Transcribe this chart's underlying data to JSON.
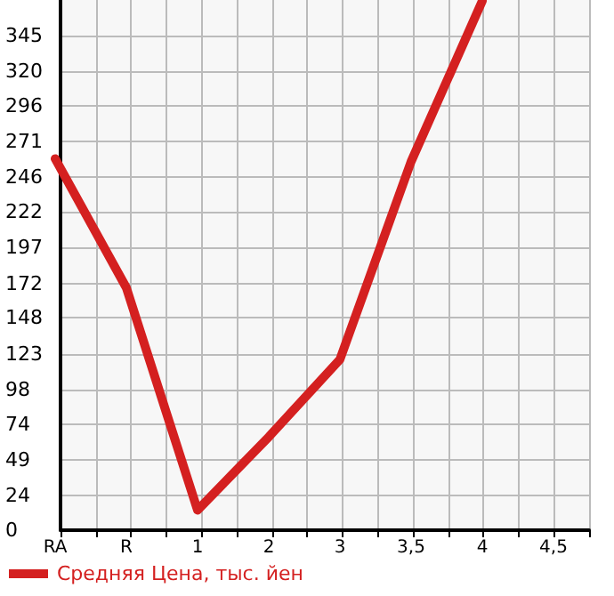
{
  "chart_data": {
    "type": "line",
    "categories": [
      "RA",
      "R",
      "1",
      "2",
      "3",
      "3,5",
      "4",
      "4,5"
    ],
    "series": [
      {
        "name": "Средняя Цена, тыс. йен",
        "color": "#d42020",
        "values": [
          259,
          169,
          14,
          65,
          119,
          257,
          369,
          null
        ]
      }
    ],
    "ylim": [
      0,
      369.64
    ],
    "yticks": [
      0,
      24,
      49,
      74,
      98,
      123,
      148,
      172,
      197,
      222,
      246,
      271,
      296,
      320,
      345
    ],
    "grid": true,
    "legend": "bottom left",
    "marker": "none",
    "line_style": "solid"
  }
}
